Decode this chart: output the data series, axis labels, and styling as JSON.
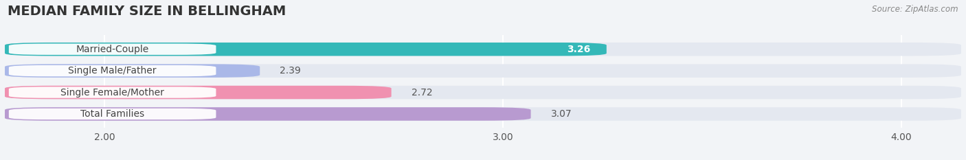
{
  "title": "MEDIAN FAMILY SIZE IN BELLINGHAM",
  "source": "Source: ZipAtlas.com",
  "categories": [
    "Married-Couple",
    "Single Male/Father",
    "Single Female/Mother",
    "Total Families"
  ],
  "values": [
    3.26,
    2.39,
    2.72,
    3.07
  ],
  "bar_colors": [
    "#34b8b8",
    "#aab8e8",
    "#f091b0",
    "#b89ad0"
  ],
  "xmin": 1.75,
  "xmax": 4.15,
  "xticks": [
    2.0,
    3.0,
    4.0
  ],
  "bar_height": 0.62,
  "background_color": "#f2f4f7",
  "bar_bg_color": "#e4e8f0",
  "title_fontsize": 14,
  "tick_fontsize": 10,
  "label_fontsize": 10,
  "value_fontsize": 10
}
